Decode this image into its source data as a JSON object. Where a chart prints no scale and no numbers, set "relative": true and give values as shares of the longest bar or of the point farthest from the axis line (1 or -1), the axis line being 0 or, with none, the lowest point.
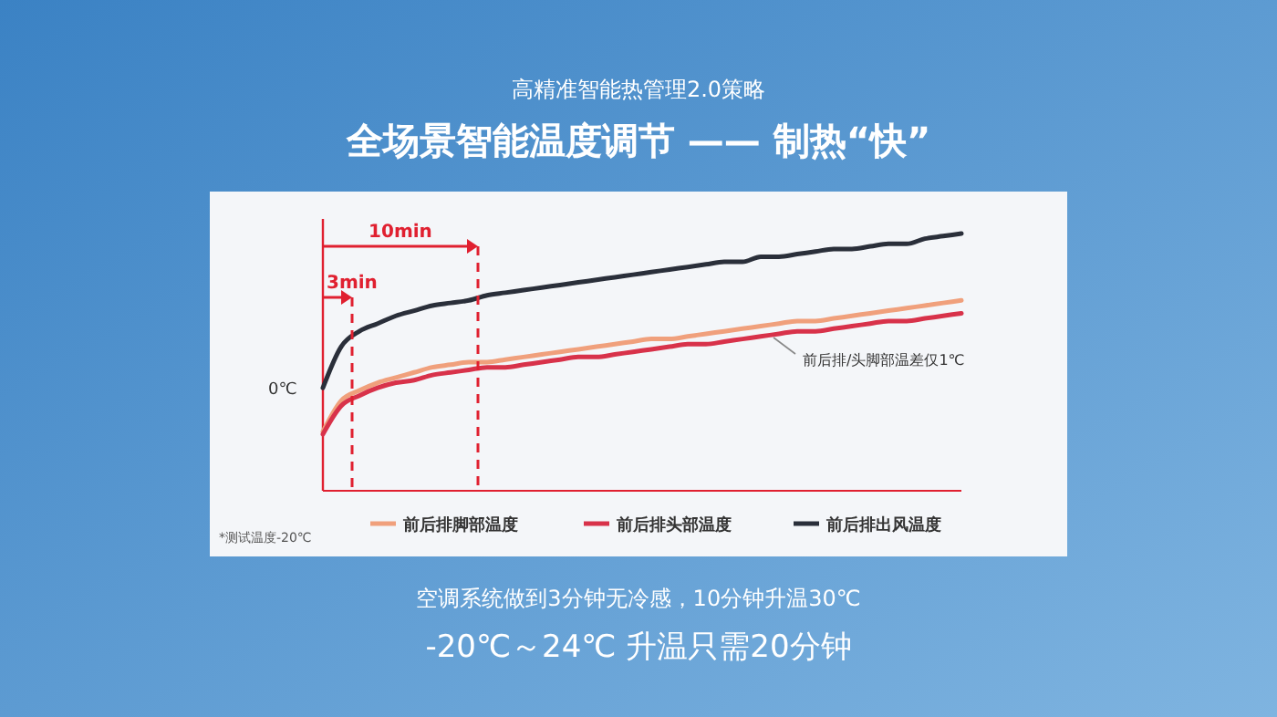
{
  "chart_data": {
    "type": "line",
    "relative": true,
    "subtitle": "高精准智能热管理2.0策略",
    "title": "全场景智能温度调节 —— 制热“快”",
    "categories": [
      null,
      null,
      null,
      null,
      null,
      null,
      null,
      null,
      null,
      null,
      null,
      null,
      null,
      null,
      null,
      null,
      null,
      null,
      null,
      null,
      null,
      null,
      null,
      null,
      null,
      null,
      null,
      null,
      null,
      null,
      null,
      null,
      null,
      null,
      null,
      null
    ],
    "series": [
      {
        "name": "前后排脚部温度",
        "color": "#f0a07c",
        "values": [
          0.23,
          0.35,
          0.39,
          0.42,
          0.44,
          0.46,
          0.48,
          0.49,
          0.5,
          0.5,
          0.51,
          0.52,
          0.53,
          0.54,
          0.55,
          0.56,
          0.57,
          0.58,
          0.59,
          0.59,
          0.6,
          0.61,
          0.62,
          0.63,
          0.64,
          0.65,
          0.66,
          0.66,
          0.67,
          0.68,
          0.69,
          0.7,
          0.71,
          0.72,
          0.73,
          0.74
        ]
      },
      {
        "name": "前后排头部温度",
        "color": "#d8324a",
        "values": [
          0.22,
          0.33,
          0.37,
          0.4,
          0.42,
          0.43,
          0.45,
          0.46,
          0.47,
          0.48,
          0.48,
          0.49,
          0.5,
          0.51,
          0.52,
          0.52,
          0.53,
          0.54,
          0.55,
          0.56,
          0.57,
          0.57,
          0.58,
          0.59,
          0.6,
          0.61,
          0.62,
          0.62,
          0.63,
          0.64,
          0.65,
          0.66,
          0.66,
          0.67,
          0.68,
          0.69
        ]
      },
      {
        "name": "前后排出风温度",
        "color": "#2a2f3a",
        "values": [
          0.4,
          0.56,
          0.62,
          0.65,
          0.68,
          0.7,
          0.72,
          0.73,
          0.74,
          0.76,
          0.77,
          0.78,
          0.79,
          0.8,
          0.81,
          0.82,
          0.83,
          0.84,
          0.85,
          0.86,
          0.87,
          0.88,
          0.89,
          0.89,
          0.91,
          0.91,
          0.92,
          0.93,
          0.94,
          0.94,
          0.95,
          0.96,
          0.96,
          0.98,
          0.99,
          1
        ]
      }
    ],
    "annotations": [
      "3min",
      "10min",
      "0℃",
      "前后排/头脚部温差仅1℃",
      "*测试温度-20℃",
      "空调系统做到3分钟无冷感，10分钟升温30℃",
      "-20℃～24℃ 升温只需20分钟"
    ],
    "legend": "bottom",
    "marker": "none",
    "line_style": "solid",
    "grid": false
  }
}
